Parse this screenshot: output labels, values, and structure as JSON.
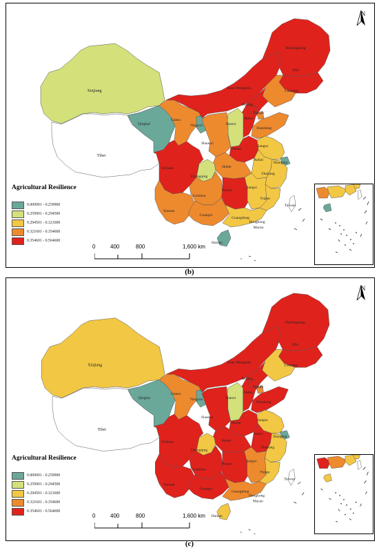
{
  "legend": {
    "title": "Agricultural Resilience",
    "classes": [
      {
        "label": "0.000001 - 0.259900",
        "color": "#6aa89a"
      },
      {
        "label": "0.259901 - 0.294500",
        "color": "#d4e07a"
      },
      {
        "label": "0.294501 - 0.321600",
        "color": "#f2c744"
      },
      {
        "label": "0.321601 - 0.354600",
        "color": "#ee8a2e"
      },
      {
        "label": "0.354601 - 0.564600",
        "color": "#e0221c"
      }
    ]
  },
  "north_label": "N",
  "scale": {
    "ticks": [
      "0",
      "400",
      "800",
      "1,600 km"
    ]
  },
  "labels": {
    "heilongjiang": "Heilongjiang",
    "jilin": "Jilin",
    "liaoning": "Liaoning",
    "inner_mongolia": "Inner Mongolia",
    "xinjiang": "Xinjiang",
    "tibet": "Tibet",
    "qinghai": "Qinghai",
    "gansu": "Gansu",
    "ningxia": "Ningxia",
    "shaanxi": "Shaanxi",
    "shanxi": "Shanxi",
    "hebei": "Hebei",
    "beijing": "Beijing",
    "tianjin": "Tianjin",
    "shandong": "Shandong",
    "henan": "Henan",
    "jiangsu": "Jiangsu",
    "anhui": "Anhui",
    "shanghai": "Shanghai",
    "hubei": "Hubei",
    "sichuan": "Sichuan",
    "chongqing": "Chongqing",
    "zhejiang": "Zhejiang",
    "hunan": "Hunan",
    "jiangxi": "Jiangxi",
    "guizhou": "Guizhou",
    "yunnan": "Yunnan",
    "guangxi": "Guangxi",
    "guangdong": "Guangdong",
    "fujian": "Fujian",
    "taiwan": "Taiwan",
    "hongkong": "Hongkong",
    "macao": "Macao",
    "hainan": "Hainan"
  },
  "maps": [
    {
      "caption": "(b)",
      "classes": {
        "xinjiang": 1,
        "tibet": -1,
        "qinghai": 0,
        "gansu": 3,
        "inner_mongolia": 4,
        "heilongjiang": 4,
        "jilin": 4,
        "liaoning": 3,
        "ningxia": 0,
        "shaanxi": 3,
        "shanxi": 1,
        "hebei": 4,
        "beijing": 4,
        "tianjin": 3,
        "shandong": 3,
        "henan": 4,
        "jiangsu": 2,
        "anhui": 2,
        "shanghai": 0,
        "hubei": 3,
        "sichuan": 4,
        "chongqing": 1,
        "zhejiang": 2,
        "hunan": 4,
        "jiangxi": 2,
        "guizhou": 3,
        "yunnan": 3,
        "guangxi": 3,
        "guangdong": 2,
        "fujian": 2,
        "hainan": 0,
        "taiwan": -1
      }
    },
    {
      "caption": "(c)",
      "classes": {
        "xinjiang": 2,
        "tibet": -1,
        "qinghai": 0,
        "gansu": 3,
        "inner_mongolia": 4,
        "heilongjiang": 4,
        "jilin": 4,
        "liaoning": 2,
        "ningxia": 0,
        "shaanxi": 4,
        "shanxi": 1,
        "hebei": 4,
        "beijing": 4,
        "tianjin": 3,
        "shandong": 4,
        "henan": 4,
        "jiangsu": 2,
        "anhui": 4,
        "shanghai": 0,
        "hubei": 4,
        "sichuan": 4,
        "chongqing": 2,
        "zhejiang": 2,
        "hunan": 4,
        "jiangxi": 3,
        "guizhou": 4,
        "yunnan": 4,
        "guangxi": 4,
        "guangdong": 3,
        "fujian": 2,
        "hainan": 2,
        "taiwan": -1
      }
    }
  ]
}
